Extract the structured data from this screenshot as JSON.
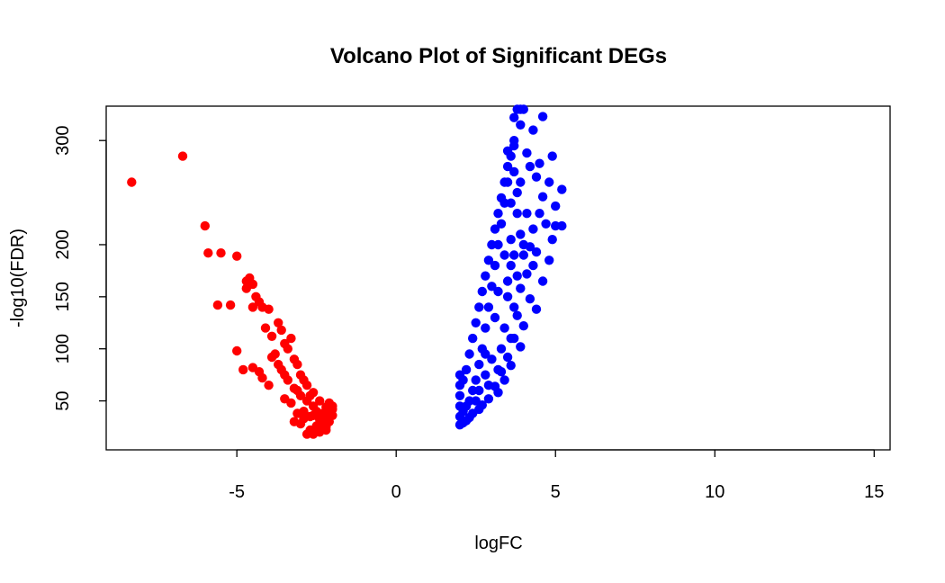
{
  "chart_data": {
    "type": "scatter",
    "title": "Volcano Plot of Significant DEGs",
    "xlabel": "logFC",
    "ylabel": "-log10(FDR)",
    "xlim": [
      -9.1,
      15.5
    ],
    "ylim": [
      3,
      333
    ],
    "x_ticks": [
      -5,
      0,
      5,
      10,
      15
    ],
    "y_ticks": [
      50,
      100,
      150,
      200,
      300
    ],
    "grid": false,
    "legend": "none",
    "series": [
      {
        "color": "#ff0000",
        "points": [
          [
            -8.3,
            260
          ],
          [
            -6.7,
            285
          ],
          [
            -6.0,
            218
          ],
          [
            -5.9,
            192
          ],
          [
            -5.5,
            192
          ],
          [
            -5.0,
            189
          ],
          [
            -5.6,
            142
          ],
          [
            -5.2,
            142
          ],
          [
            -5.0,
            98
          ],
          [
            -4.8,
            80
          ],
          [
            -4.5,
            82
          ],
          [
            -4.7,
            165
          ],
          [
            -4.7,
            158
          ],
          [
            -4.6,
            168
          ],
          [
            -4.5,
            162
          ],
          [
            -4.4,
            150
          ],
          [
            -4.3,
            145
          ],
          [
            -4.2,
            140
          ],
          [
            -4.5,
            140
          ],
          [
            -4.0,
            138
          ],
          [
            -4.1,
            120
          ],
          [
            -3.9,
            112
          ],
          [
            -3.9,
            92
          ],
          [
            -3.7,
            85
          ],
          [
            -4.3,
            78
          ],
          [
            -4.2,
            72
          ],
          [
            -4.0,
            65
          ],
          [
            -3.5,
            52
          ],
          [
            -3.3,
            48
          ],
          [
            -3.2,
            30
          ],
          [
            -3.0,
            28
          ],
          [
            -2.8,
            18
          ],
          [
            -2.6,
            18
          ],
          [
            -2.4,
            20
          ],
          [
            -2.2,
            22
          ],
          [
            -2.3,
            28
          ],
          [
            -2.5,
            26
          ],
          [
            -2.9,
            40
          ],
          [
            -2.7,
            35
          ],
          [
            -2.1,
            30
          ],
          [
            -2.2,
            40
          ],
          [
            -2.0,
            45
          ],
          [
            -2.1,
            48
          ],
          [
            -2.4,
            50
          ],
          [
            -2.7,
            55
          ],
          [
            -3.1,
            60
          ],
          [
            -3.4,
            70
          ],
          [
            -3.6,
            80
          ],
          [
            -3.8,
            95
          ],
          [
            -3.5,
            105
          ],
          [
            -3.2,
            90
          ],
          [
            -3.0,
            75
          ],
          [
            -2.8,
            65
          ],
          [
            -2.6,
            58
          ],
          [
            -3.3,
            110
          ],
          [
            -3.6,
            118
          ],
          [
            -3.7,
            125
          ],
          [
            -3.4,
            100
          ],
          [
            -3.1,
            85
          ],
          [
            -2.9,
            70
          ],
          [
            -2.5,
            40
          ],
          [
            -2.3,
            35
          ],
          [
            -2.6,
            45
          ],
          [
            -2.8,
            50
          ],
          [
            -3.0,
            55
          ],
          [
            -3.2,
            62
          ],
          [
            -3.5,
            75
          ],
          [
            -2.2,
            25
          ],
          [
            -2.4,
            32
          ],
          [
            -2.6,
            36
          ],
          [
            -2.9,
            33
          ],
          [
            -3.1,
            38
          ],
          [
            -2.7,
            22
          ],
          [
            -2.5,
            24
          ],
          [
            -2.2,
            44
          ],
          [
            -2.3,
            38
          ],
          [
            -2.1,
            34
          ],
          [
            -2.0,
            36
          ],
          [
            -2.0,
            42
          ]
        ]
      },
      {
        "color": "#0000ff",
        "points": [
          [
            3.8,
            330
          ],
          [
            3.9,
            330
          ],
          [
            4.0,
            330
          ],
          [
            3.7,
            322
          ],
          [
            3.9,
            315
          ],
          [
            4.6,
            323
          ],
          [
            4.3,
            310
          ],
          [
            4.9,
            285
          ],
          [
            3.7,
            300
          ],
          [
            3.5,
            290
          ],
          [
            4.1,
            288
          ],
          [
            4.5,
            278
          ],
          [
            4.2,
            275
          ],
          [
            4.4,
            265
          ],
          [
            4.8,
            260
          ],
          [
            5.2,
            253
          ],
          [
            4.6,
            246
          ],
          [
            5.0,
            237
          ],
          [
            4.1,
            230
          ],
          [
            4.5,
            230
          ],
          [
            4.7,
            220
          ],
          [
            5.0,
            218
          ],
          [
            5.2,
            218
          ],
          [
            4.3,
            215
          ],
          [
            4.9,
            205
          ],
          [
            4.0,
            200
          ],
          [
            4.2,
            198
          ],
          [
            4.4,
            193
          ],
          [
            4.8,
            185
          ],
          [
            4.3,
            180
          ],
          [
            4.1,
            172
          ],
          [
            4.6,
            165
          ],
          [
            3.9,
            158
          ],
          [
            4.2,
            148
          ],
          [
            4.4,
            138
          ],
          [
            3.8,
            132
          ],
          [
            4.0,
            122
          ],
          [
            3.7,
            110
          ],
          [
            3.9,
            102
          ],
          [
            3.5,
            92
          ],
          [
            3.6,
            84
          ],
          [
            3.3,
            78
          ],
          [
            3.4,
            70
          ],
          [
            3.1,
            64
          ],
          [
            3.2,
            58
          ],
          [
            2.9,
            52
          ],
          [
            2.7,
            46
          ],
          [
            2.6,
            42
          ],
          [
            2.4,
            38
          ],
          [
            2.3,
            34
          ],
          [
            2.2,
            31
          ],
          [
            2.1,
            29
          ],
          [
            2.0,
            27
          ],
          [
            2.0,
            35
          ],
          [
            2.0,
            45
          ],
          [
            2.0,
            55
          ],
          [
            2.0,
            65
          ],
          [
            2.0,
            75
          ],
          [
            2.1,
            70
          ],
          [
            2.2,
            80
          ],
          [
            2.3,
            95
          ],
          [
            2.4,
            110
          ],
          [
            2.5,
            125
          ],
          [
            2.6,
            140
          ],
          [
            2.7,
            155
          ],
          [
            2.8,
            170
          ],
          [
            2.9,
            185
          ],
          [
            3.0,
            200
          ],
          [
            3.1,
            215
          ],
          [
            3.2,
            230
          ],
          [
            3.3,
            245
          ],
          [
            3.4,
            260
          ],
          [
            3.5,
            275
          ],
          [
            3.6,
            285
          ],
          [
            3.7,
            295
          ],
          [
            3.5,
            260
          ],
          [
            3.4,
            240
          ],
          [
            3.3,
            220
          ],
          [
            3.2,
            200
          ],
          [
            3.1,
            180
          ],
          [
            3.0,
            160
          ],
          [
            2.9,
            140
          ],
          [
            2.8,
            120
          ],
          [
            2.7,
            100
          ],
          [
            2.6,
            85
          ],
          [
            2.5,
            70
          ],
          [
            2.4,
            60
          ],
          [
            2.3,
            50
          ],
          [
            2.2,
            45
          ],
          [
            2.1,
            40
          ],
          [
            3.6,
            240
          ],
          [
            3.8,
            230
          ],
          [
            3.9,
            210
          ],
          [
            4.0,
            190
          ],
          [
            3.6,
            180
          ],
          [
            3.8,
            170
          ],
          [
            3.5,
            150
          ],
          [
            3.7,
            140
          ],
          [
            3.4,
            120
          ],
          [
            3.6,
            110
          ],
          [
            3.3,
            100
          ],
          [
            3.0,
            90
          ],
          [
            3.2,
            80
          ],
          [
            2.8,
            75
          ],
          [
            2.9,
            65
          ],
          [
            3.5,
            165
          ],
          [
            3.7,
            190
          ],
          [
            3.8,
            250
          ],
          [
            3.7,
            270
          ],
          [
            3.9,
            260
          ],
          [
            3.6,
            205
          ],
          [
            3.4,
            190
          ],
          [
            3.2,
            155
          ],
          [
            3.1,
            130
          ],
          [
            2.8,
            95
          ],
          [
            2.6,
            60
          ],
          [
            2.5,
            50
          ]
        ]
      }
    ]
  }
}
